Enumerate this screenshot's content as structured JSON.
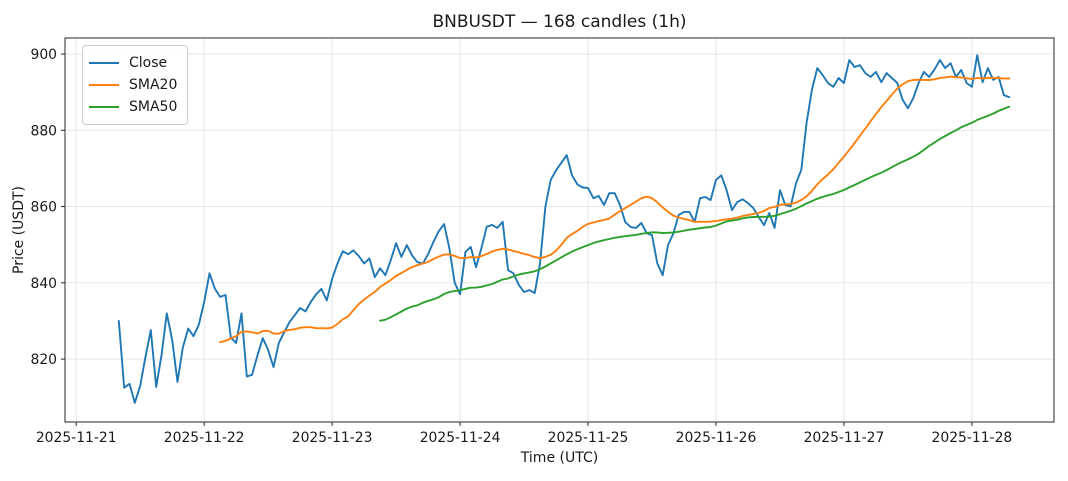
{
  "chart_data": {
    "type": "line",
    "title": "BNBUSDT — 168 candles (1h)",
    "xlabel": "Time (UTC)",
    "ylabel": "Price (USDT)",
    "grid": true,
    "legend_position": "upper left",
    "background_color": "#ffffff",
    "grid_color": "#e6e6e6",
    "axis_color": "#262626",
    "x_tick_labels": [
      "2025-11-21",
      "2025-11-22",
      "2025-11-23",
      "2025-11-24",
      "2025-11-25",
      "2025-11-26",
      "2025-11-27",
      "2025-11-28"
    ],
    "x_tick_hours": [
      -8,
      16,
      40,
      64,
      88,
      112,
      136,
      160
    ],
    "y_ticks": [
      820,
      840,
      860,
      880,
      900
    ],
    "xlim_hours": [
      -10.1,
      175.4
    ],
    "ylim": [
      803.5,
      904.2
    ],
    "series": [
      {
        "name": "Close",
        "color": "#1f77b4",
        "values": [
          830.0,
          812.5,
          813.5,
          808.5,
          813.0,
          820.6,
          827.6,
          812.7,
          821.0,
          832.0,
          825.0,
          814.0,
          823.0,
          828.0,
          826.0,
          829.0,
          835.0,
          842.5,
          838.5,
          836.3,
          836.8,
          825.7,
          824.2,
          832.0,
          815.4,
          815.9,
          821.0,
          825.5,
          822.4,
          817.9,
          824.2,
          827.0,
          829.7,
          831.5,
          833.4,
          832.5,
          835.0,
          837.0,
          838.4,
          835.4,
          841.0,
          845.0,
          848.3,
          847.5,
          848.5,
          847.0,
          845.1,
          846.4,
          841.5,
          843.8,
          842.0,
          846.0,
          850.4,
          846.8,
          849.9,
          847.2,
          845.4,
          845.0,
          847.5,
          850.7,
          853.5,
          855.4,
          849.0,
          840.0,
          837.0,
          848.1,
          849.4,
          844.1,
          849.1,
          854.7,
          855.2,
          854.4,
          856.0,
          843.3,
          842.5,
          839.5,
          837.6,
          838.1,
          837.3,
          845.0,
          860.0,
          867.0,
          869.5,
          871.5,
          873.5,
          868.2,
          865.8,
          865.0,
          864.9,
          862.2,
          862.8,
          860.4,
          863.5,
          863.5,
          860.4,
          855.9,
          854.6,
          854.4,
          855.7,
          853.0,
          852.5,
          845.1,
          842.0,
          849.9,
          852.9,
          857.8,
          858.6,
          858.6,
          856.0,
          862.2,
          862.5,
          861.7,
          867.0,
          868.2,
          864.3,
          859.1,
          861.2,
          861.9,
          860.9,
          859.6,
          857.3,
          855.1,
          858.3,
          854.4,
          864.3,
          860.4,
          860.0,
          866.1,
          869.6,
          882.0,
          890.6,
          896.3,
          894.5,
          892.4,
          891.4,
          893.7,
          892.4,
          898.4,
          896.6,
          897.1,
          895.0,
          894.0,
          895.3,
          892.6,
          895.0,
          893.7,
          892.4,
          888.0,
          885.8,
          888.4,
          892.4,
          895.3,
          894.0,
          896.0,
          898.4,
          896.3,
          897.6,
          894.0,
          895.8,
          892.4,
          891.4,
          899.7,
          892.6,
          896.3,
          893.2,
          894.0,
          889.2,
          888.7
        ]
      },
      {
        "name": "SMA20",
        "color": "#ff7f0e",
        "derived": "sma_of_close",
        "window": 20
      },
      {
        "name": "SMA50",
        "color": "#2ca02c",
        "derived": "sma_of_close",
        "window": 50
      }
    ]
  }
}
